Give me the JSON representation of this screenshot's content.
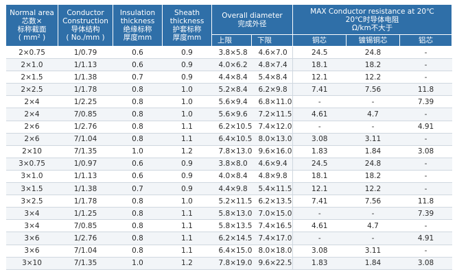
{
  "headers": {
    "area": {
      "en1": "Normal area",
      "zh1": "芯数×",
      "zh2": "标称截面",
      "unit": "( mm² )"
    },
    "conductor": {
      "en1": "Conductor",
      "en2": "Construction",
      "zh1": "导体结构",
      "unit": "( No./mm )"
    },
    "insulation": {
      "en1": "Insulation",
      "en2": "thickness",
      "zh1": "绝缘标称",
      "zh2": "厚度mm"
    },
    "sheath": {
      "en1": "Sheath",
      "en2": "thickness",
      "zh1": "护套标称",
      "zh2": "厚度mm"
    },
    "diameter": {
      "en1": "Overall diameter",
      "zh1": "完成外径",
      "lower": "上限",
      "upper": "下限"
    },
    "resistance": {
      "en1": "MAX Conductor resistance at 20℃",
      "zh1": "20℃时导体电阻",
      "zh2": "Ω/km不大于",
      "copper": "铜芯",
      "tinned": "镀锡铜芯",
      "aluminium": "铝芯"
    }
  },
  "rows": [
    {
      "area": "2×0.75",
      "cond": "1/0.79",
      "ins": "0.6",
      "sh": "0.9",
      "d1": "3.8×5.8",
      "d2": "4.6×7.0",
      "cu": "24.5",
      "tcu": "24.8",
      "al": "-"
    },
    {
      "area": "2×1.0",
      "cond": "1/1.13",
      "ins": "0.6",
      "sh": "0.9",
      "d1": "4.0×6.2",
      "d2": "4.8×7.4",
      "cu": "18.1",
      "tcu": "18.2",
      "al": "-"
    },
    {
      "area": "2×1.5",
      "cond": "1/1.38",
      "ins": "0.7",
      "sh": "0.9",
      "d1": "4.4×8.4",
      "d2": "5.4×8.4",
      "cu": "12.1",
      "tcu": "12.2",
      "al": "-"
    },
    {
      "area": "2×2.5",
      "cond": "1/1.78",
      "ins": "0.8",
      "sh": "1.0",
      "d1": "5.2×8.4",
      "d2": "6.2×9.8",
      "cu": "7.41",
      "tcu": "7.56",
      "al": "11.8"
    },
    {
      "area": "2×4",
      "cond": "1/2.25",
      "ins": "0.8",
      "sh": "1.0",
      "d1": "5.6×9.4",
      "d2": "6.8×11.0",
      "cu": "-",
      "tcu": "-",
      "al": "7.39"
    },
    {
      "area": "2×4",
      "cond": "7/0.85",
      "ins": "0.8",
      "sh": "1.0",
      "d1": "5.6×9.6",
      "d2": "7.2×11.5",
      "cu": "4.61",
      "tcu": "4.7",
      "al": "-"
    },
    {
      "area": "2×6",
      "cond": "1/2.76",
      "ins": "0.8",
      "sh": "1.1",
      "d1": "6.2×10.5",
      "d2": "7.4×12.0",
      "cu": "-",
      "tcu": "-",
      "al": "4.91"
    },
    {
      "area": "2×6",
      "cond": "7/1.04",
      "ins": "0.8",
      "sh": "1.1",
      "d1": "6.4×10.5",
      "d2": "8.0×13.0",
      "cu": "3.08",
      "tcu": "3.11",
      "al": "-"
    },
    {
      "area": "2×10",
      "cond": "7/1.35",
      "ins": "1.0",
      "sh": "1.2",
      "d1": "7.8×13.0",
      "d2": "9.6×16.0",
      "cu": "1.83",
      "tcu": "1.84",
      "al": "3.08"
    },
    {
      "area": "3×0.75",
      "cond": "1/0.97",
      "ins": "0.6",
      "sh": "0.9",
      "d1": "3.8×8.0",
      "d2": "4.6×9.4",
      "cu": "24.5",
      "tcu": "24.8",
      "al": "-"
    },
    {
      "area": "3×1.0",
      "cond": "1/1.13",
      "ins": "0.6",
      "sh": "0.9",
      "d1": "4.0×8.4",
      "d2": "4.8×9.8",
      "cu": "18.1",
      "tcu": "18.2",
      "al": "-"
    },
    {
      "area": "3×1.5",
      "cond": "1/1.38",
      "ins": "0.7",
      "sh": "0.9",
      "d1": "4.4×9.8",
      "d2": "5.4×11.5",
      "cu": "12.1",
      "tcu": "12.2",
      "al": "-"
    },
    {
      "area": "3×2.5",
      "cond": "1/1.78",
      "ins": "0.8",
      "sh": "1.0",
      "d1": "5.2×11.5",
      "d2": "6.2×13.5",
      "cu": "7.41",
      "tcu": "7.56",
      "al": "11.8"
    },
    {
      "area": "3×4",
      "cond": "1/1.25",
      "ins": "0.8",
      "sh": "1.1",
      "d1": "5.8×13.0",
      "d2": "7.0×15.0",
      "cu": "-",
      "tcu": "-",
      "al": "7.39"
    },
    {
      "area": "3×4",
      "cond": "7/0.85",
      "ins": "0.8",
      "sh": "1.1",
      "d1": "5.8×13.5",
      "d2": "7.4×16.5",
      "cu": "4.61",
      "tcu": "4.7",
      "al": "-"
    },
    {
      "area": "3×6",
      "cond": "1/2.76",
      "ins": "0.8",
      "sh": "1.1",
      "d1": "6.2×14.5",
      "d2": "7.4×17.0",
      "cu": "-",
      "tcu": "-",
      "al": "4.91"
    },
    {
      "area": "3×6",
      "cond": "7/1.04",
      "ins": "0.8",
      "sh": "1.1",
      "d1": "6.4×15.0",
      "d2": "8.0×18.0",
      "cu": "3.08",
      "tcu": "3.11",
      "al": "-"
    },
    {
      "area": "3×10",
      "cond": "7/1.35",
      "ins": "1.0",
      "sh": "1.2",
      "d1": "7.8×19.0",
      "d2": "9.6×22.5",
      "cu": "1.83",
      "tcu": "1.84",
      "al": "3.08"
    }
  ],
  "colors": {
    "header_bg": "#2f6fa8",
    "header_text": "#ffffff",
    "row_alt": "#f2f5f8",
    "rule": "#cfd7df"
  }
}
